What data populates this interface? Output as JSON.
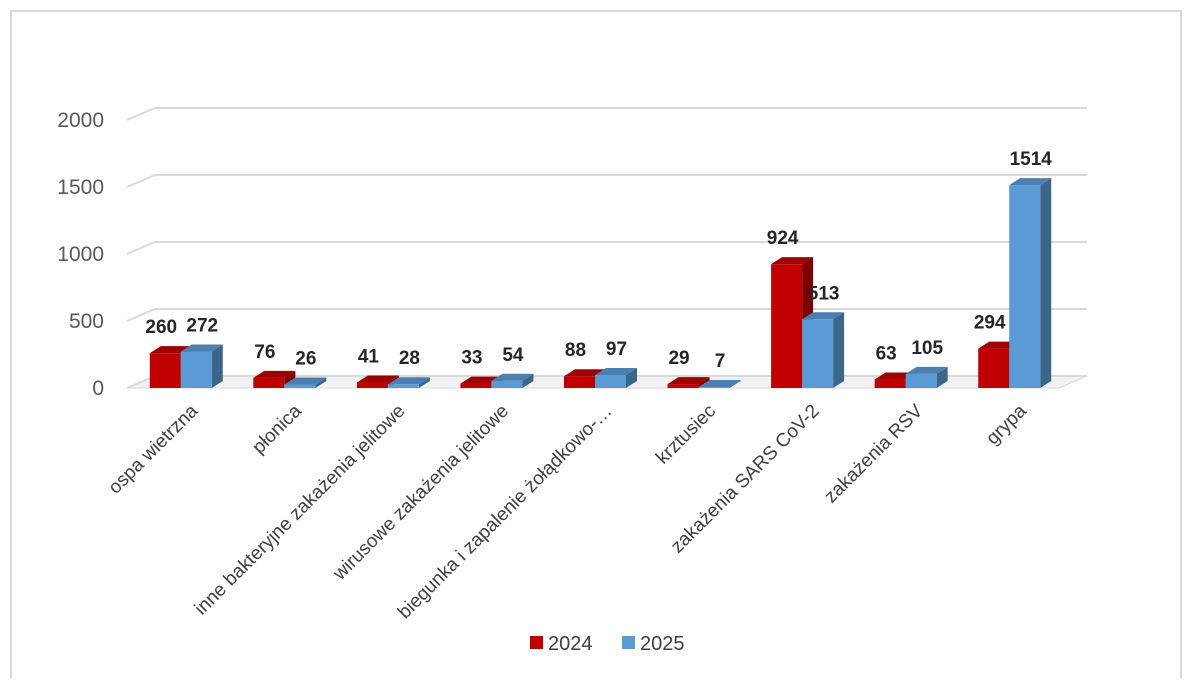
{
  "chart_data": {
    "type": "bar",
    "title": "",
    "xlabel": "",
    "ylabel": "",
    "ylim": [
      0,
      2000
    ],
    "yticks": [
      0,
      500,
      1000,
      1500,
      2000
    ],
    "grid": true,
    "legend_position": "bottom",
    "categories": [
      "ospa wietrzna",
      "płonica",
      "inne bakteryjne zakażenia jelitowe",
      "wirusowe zakażenia jelitowe",
      "biegunka i zapalenie żołądkowo-…",
      "krztusiec",
      "zakażenia SARS CoV-2",
      "zakażenia RSV",
      "grypa"
    ],
    "series": [
      {
        "name": "2024",
        "values": [
          260,
          76,
          41,
          33,
          88,
          29,
          924,
          63,
          294
        ],
        "color": "#c00000"
      },
      {
        "name": "2025",
        "values": [
          272,
          26,
          28,
          54,
          97,
          7,
          513,
          105,
          1514
        ],
        "color": "#5b9bd5"
      }
    ]
  }
}
